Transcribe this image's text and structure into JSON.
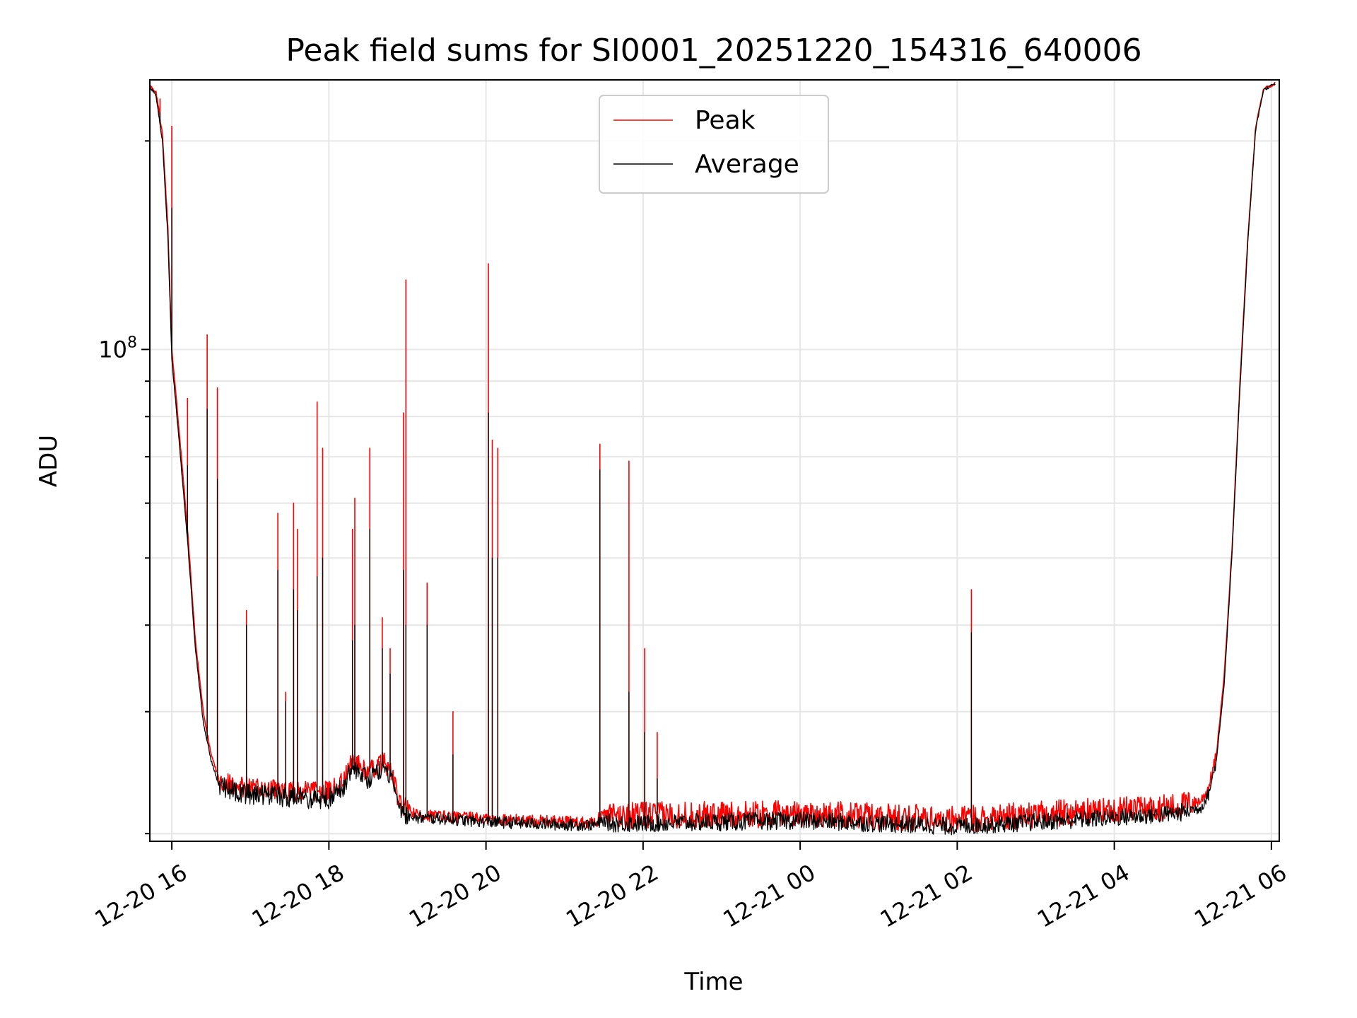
{
  "chart_data": {
    "type": "line",
    "title": "Peak field sums for SI0001_20251220_154316_640006",
    "xlabel": "Time",
    "ylabel": "ADU",
    "yscale": "log",
    "xlim": [
      15.72,
      30.1
    ],
    "ylim": [
      19500000,
      245000000
    ],
    "x_ticks": [
      {
        "value": 16,
        "label": "12-20 16"
      },
      {
        "value": 18,
        "label": "12-20 18"
      },
      {
        "value": 20,
        "label": "12-20 20"
      },
      {
        "value": 22,
        "label": "12-20 22"
      },
      {
        "value": 24,
        "label": "12-21 00"
      },
      {
        "value": 26,
        "label": "12-21 02"
      },
      {
        "value": 28,
        "label": "12-21 04"
      },
      {
        "value": 30,
        "label": "12-21 06"
      }
    ],
    "y_major_ticks": [
      {
        "value": 100000000,
        "base": "10",
        "exp": "8"
      }
    ],
    "y_minor_ticks": [
      20000000,
      30000000,
      40000000,
      50000000,
      60000000,
      70000000,
      80000000,
      90000000,
      200000000
    ],
    "legend": {
      "location": "upper center"
    },
    "series": [
      {
        "name": "Peak",
        "color": "#ff0000",
        "baseline": [
          [
            15.72,
            240000000
          ],
          [
            15.8,
            235000000
          ],
          [
            15.88,
            205000000
          ],
          [
            15.95,
            150000000
          ],
          [
            16.0,
            100000000
          ],
          [
            16.1,
            75000000
          ],
          [
            16.2,
            55000000
          ],
          [
            16.3,
            38000000
          ],
          [
            16.4,
            30000000
          ],
          [
            16.5,
            26000000
          ],
          [
            16.6,
            24000000
          ],
          [
            16.8,
            23500000
          ],
          [
            17.0,
            23300000
          ],
          [
            17.5,
            23000000
          ],
          [
            18.0,
            23000000
          ],
          [
            18.2,
            24000000
          ],
          [
            18.3,
            25500000
          ],
          [
            18.5,
            24500000
          ],
          [
            18.7,
            25500000
          ],
          [
            18.8,
            24500000
          ],
          [
            18.9,
            22000000
          ],
          [
            19.0,
            21700000
          ],
          [
            19.1,
            21300000
          ],
          [
            19.5,
            21200000
          ],
          [
            20.0,
            21000000
          ],
          [
            20.5,
            20900000
          ],
          [
            21.0,
            20800000
          ],
          [
            21.4,
            20800000
          ],
          [
            21.5,
            21400000
          ],
          [
            21.6,
            21200000
          ],
          [
            22.0,
            21300000
          ],
          [
            23.0,
            21300000
          ],
          [
            24.0,
            21400000
          ],
          [
            25.0,
            21200000
          ],
          [
            26.0,
            21000000
          ],
          [
            27.0,
            21300000
          ],
          [
            28.0,
            21700000
          ],
          [
            28.8,
            21900000
          ],
          [
            29.1,
            22300000
          ],
          [
            29.2,
            23300000
          ],
          [
            29.3,
            26000000
          ],
          [
            29.4,
            34000000
          ],
          [
            29.5,
            52000000
          ],
          [
            29.6,
            90000000
          ],
          [
            29.7,
            145000000
          ],
          [
            29.8,
            210000000
          ],
          [
            29.9,
            238000000
          ],
          [
            30.05,
            242000000
          ]
        ],
        "spikes": [
          [
            15.85,
            230000000
          ],
          [
            16.0,
            210000000
          ],
          [
            16.2,
            85000000
          ],
          [
            16.45,
            105000000
          ],
          [
            16.58,
            88000000
          ],
          [
            16.95,
            42000000
          ],
          [
            17.35,
            58000000
          ],
          [
            17.45,
            32000000
          ],
          [
            17.55,
            60000000
          ],
          [
            17.6,
            55000000
          ],
          [
            17.85,
            84000000
          ],
          [
            17.92,
            72000000
          ],
          [
            18.3,
            55000000
          ],
          [
            18.33,
            61000000
          ],
          [
            18.52,
            72000000
          ],
          [
            18.68,
            41000000
          ],
          [
            18.78,
            37000000
          ],
          [
            18.95,
            81000000
          ],
          [
            18.98,
            126000000
          ],
          [
            19.25,
            46000000
          ],
          [
            19.58,
            30000000
          ],
          [
            20.03,
            133000000
          ],
          [
            20.08,
            74000000
          ],
          [
            20.15,
            72000000
          ],
          [
            21.45,
            73000000
          ],
          [
            21.82,
            69000000
          ],
          [
            22.02,
            37000000
          ],
          [
            22.18,
            28000000
          ],
          [
            26.18,
            45000000
          ]
        ]
      },
      {
        "name": "Average",
        "color": "#000000",
        "baseline": [
          [
            15.72,
            240000000
          ],
          [
            15.8,
            232000000
          ],
          [
            15.88,
            200000000
          ],
          [
            15.95,
            145000000
          ],
          [
            16.0,
            97000000
          ],
          [
            16.1,
            72000000
          ],
          [
            16.2,
            53000000
          ],
          [
            16.3,
            37000000
          ],
          [
            16.4,
            29000000
          ],
          [
            16.5,
            25500000
          ],
          [
            16.6,
            23500000
          ],
          [
            16.8,
            23000000
          ],
          [
            17.0,
            22800000
          ],
          [
            17.5,
            22500000
          ],
          [
            18.0,
            22500000
          ],
          [
            18.2,
            23500000
          ],
          [
            18.3,
            25000000
          ],
          [
            18.5,
            24000000
          ],
          [
            18.7,
            25000000
          ],
          [
            18.8,
            24000000
          ],
          [
            18.9,
            21800000
          ],
          [
            19.0,
            21300000
          ],
          [
            19.1,
            21100000
          ],
          [
            19.5,
            21000000
          ],
          [
            20.0,
            20800000
          ],
          [
            20.5,
            20700000
          ],
          [
            21.0,
            20600000
          ],
          [
            21.4,
            20600000
          ],
          [
            21.5,
            20900000
          ],
          [
            21.6,
            20700000
          ],
          [
            22.0,
            20700000
          ],
          [
            23.0,
            20800000
          ],
          [
            24.0,
            20900000
          ],
          [
            25.0,
            20700000
          ],
          [
            26.0,
            20500000
          ],
          [
            27.0,
            20800000
          ],
          [
            28.0,
            21100000
          ],
          [
            28.8,
            21400000
          ],
          [
            29.1,
            21800000
          ],
          [
            29.2,
            22800000
          ],
          [
            29.3,
            25500000
          ],
          [
            29.4,
            33000000
          ],
          [
            29.5,
            51000000
          ],
          [
            29.6,
            88000000
          ],
          [
            29.7,
            143000000
          ],
          [
            29.8,
            208000000
          ],
          [
            29.9,
            237000000
          ],
          [
            30.05,
            242000000
          ]
        ],
        "spikes": [
          [
            15.85,
            220000000
          ],
          [
            16.0,
            160000000
          ],
          [
            16.2,
            68000000
          ],
          [
            16.45,
            82000000
          ],
          [
            16.58,
            65000000
          ],
          [
            16.95,
            40000000
          ],
          [
            17.35,
            48000000
          ],
          [
            17.45,
            31000000
          ],
          [
            17.55,
            45000000
          ],
          [
            17.6,
            42000000
          ],
          [
            17.85,
            47000000
          ],
          [
            17.92,
            50000000
          ],
          [
            18.3,
            38000000
          ],
          [
            18.33,
            40000000
          ],
          [
            18.52,
            55000000
          ],
          [
            18.68,
            37000000
          ],
          [
            18.78,
            34000000
          ],
          [
            18.95,
            48000000
          ],
          [
            18.98,
            40000000
          ],
          [
            19.25,
            40000000
          ],
          [
            19.58,
            26000000
          ],
          [
            20.03,
            81000000
          ],
          [
            20.08,
            50000000
          ],
          [
            20.15,
            50000000
          ],
          [
            21.45,
            67000000
          ],
          [
            21.82,
            32000000
          ],
          [
            22.02,
            28000000
          ],
          [
            22.18,
            24000000
          ],
          [
            26.18,
            39000000
          ]
        ]
      }
    ]
  }
}
